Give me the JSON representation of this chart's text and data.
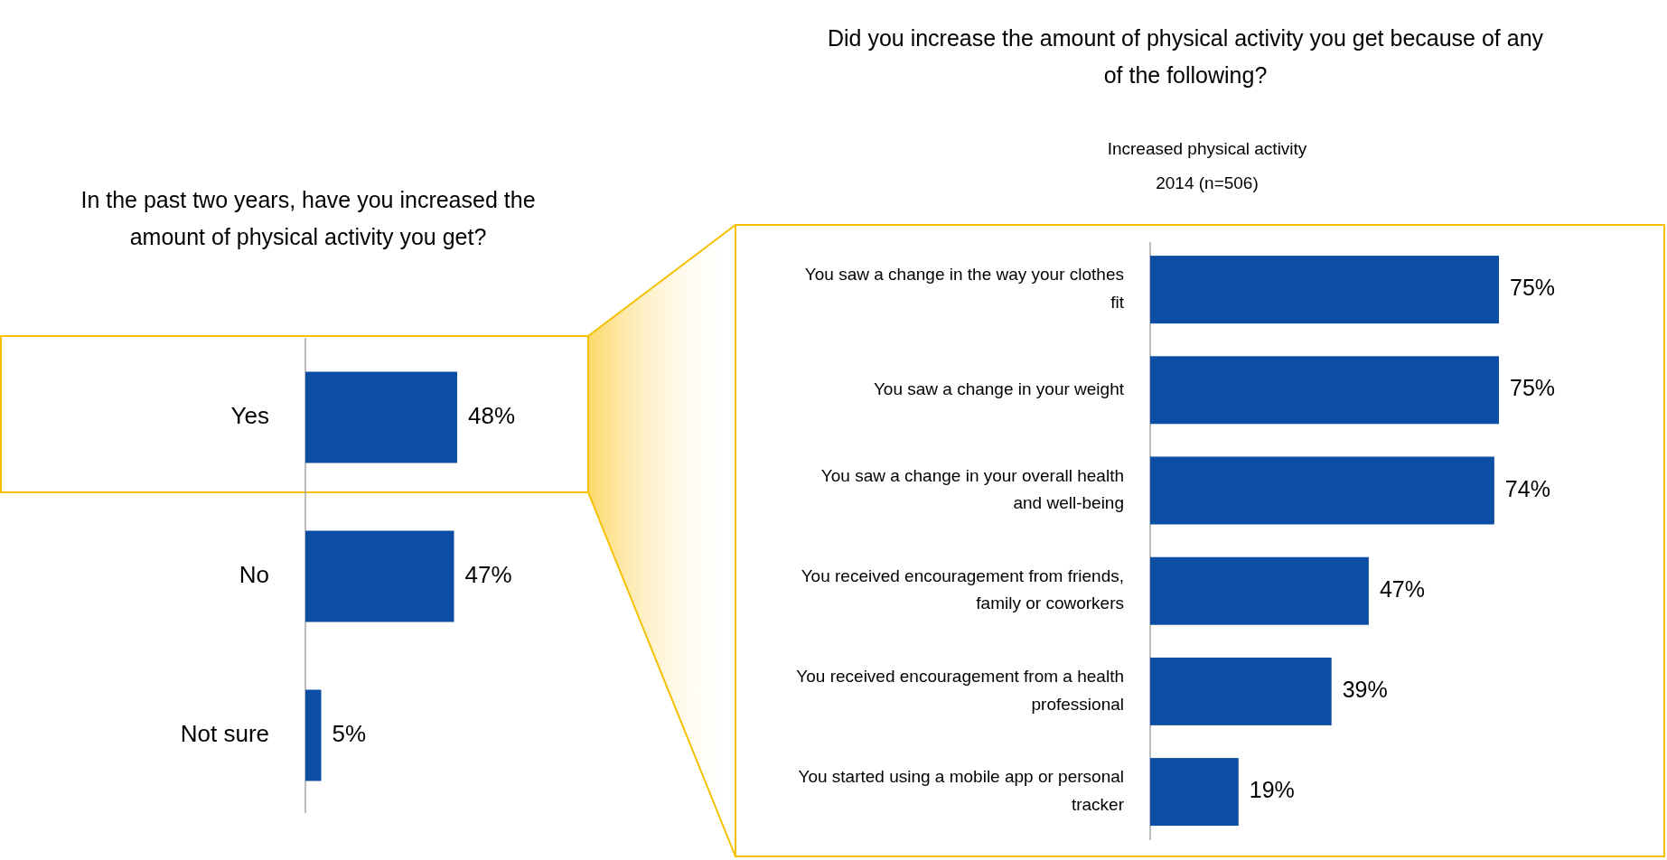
{
  "chart_data": [
    {
      "type": "bar",
      "orientation": "horizontal",
      "title": "In the past two years, have you increased the amount of physical activity you get?",
      "categories": [
        "Yes",
        "No",
        "Not sure"
      ],
      "values": [
        48,
        47,
        5
      ],
      "value_labels": [
        "48%",
        "47%",
        "5%"
      ],
      "color": "#0b4ea3"
    },
    {
      "type": "bar",
      "orientation": "horizontal",
      "title": "Did you increase the amount of physical activity you get because of any of the following?",
      "subtitle": "Increased physical activity\n2014 (n=506)",
      "categories": [
        "You saw a change in the way your clothes fit",
        "You saw a change in your weight",
        "You saw a change in your overall health and well-being",
        "You received encouragement from friends, family or coworkers",
        "You received encouragement from a health professional",
        "You started using a mobile app or personal tracker"
      ],
      "values": [
        75,
        75,
        74,
        47,
        39,
        19
      ],
      "value_labels": [
        "75%",
        "75%",
        "74%",
        "47%",
        "39%",
        "19%"
      ],
      "color": "#0b4ea3"
    }
  ]
}
